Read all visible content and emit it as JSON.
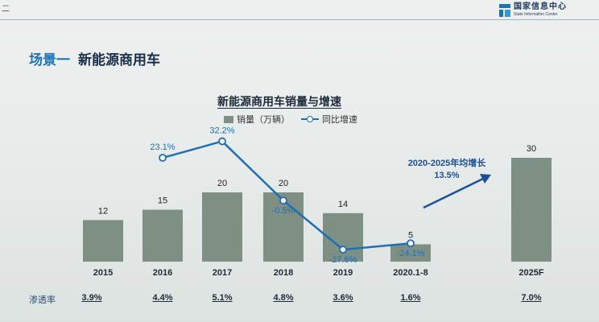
{
  "header": {
    "corner_text": "二",
    "logo": {
      "cn": "国家信息中心",
      "en": "State Information Center"
    }
  },
  "section": {
    "prefix": "场景一",
    "title": "新能源商用车"
  },
  "chart_data": {
    "type": "bar",
    "title": "新能源商用车销量与增速",
    "categories": [
      "2015",
      "2016",
      "2017",
      "2018",
      "2019",
      "2020.1-8",
      "2025F"
    ],
    "series": [
      {
        "name": "销量（万辆）",
        "type": "bar",
        "values": [
          12,
          15,
          20,
          20,
          14,
          5,
          30
        ]
      },
      {
        "name": "同比增速",
        "type": "line",
        "values": [
          null,
          23.1,
          32.2,
          -0.5,
          -27.6,
          -24.1,
          null
        ],
        "labels": [
          null,
          "23.1%",
          "32.2%",
          "-0.5%",
          "-27.6%",
          "-24.1%",
          null
        ]
      }
    ],
    "annotation": "2020-2025年均增长13.5%",
    "penetration": {
      "label": "渗透率",
      "values": [
        "3.9%",
        "4.4%",
        "5.1%",
        "4.8%",
        "3.6%",
        "1.6%",
        "7.0%"
      ]
    },
    "colors": {
      "bar": "#7e8f83",
      "line": "#1f6fb5",
      "annotation": "#1d4f9a"
    }
  }
}
